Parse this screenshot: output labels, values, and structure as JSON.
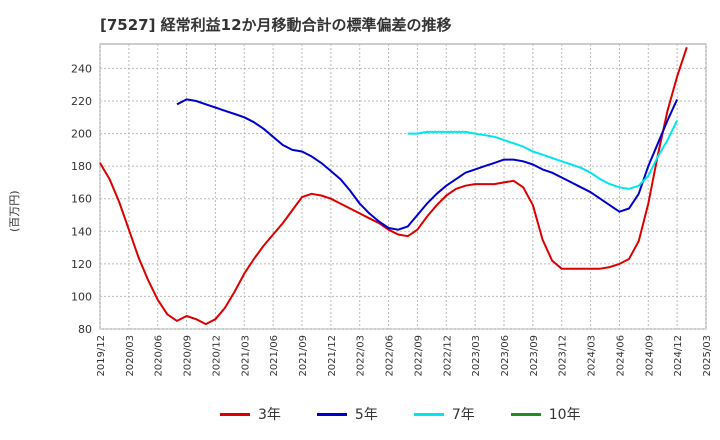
{
  "chart_data": {
    "type": "line",
    "title": "[7527]  経常利益12か月移動合計の標準偏差の推移",
    "ylabel": "(百万円)",
    "xlabel": "",
    "ylim": [
      80,
      255
    ],
    "yticks": [
      80,
      100,
      120,
      140,
      160,
      180,
      200,
      220,
      240
    ],
    "xticks": [
      "2019/12",
      "2020/03",
      "2020/06",
      "2020/09",
      "2020/12",
      "2021/03",
      "2021/06",
      "2021/09",
      "2021/12",
      "2022/03",
      "2022/06",
      "2022/09",
      "2022/12",
      "2023/03",
      "2023/06",
      "2023/09",
      "2023/12",
      "2024/03",
      "2024/06",
      "2024/09",
      "2024/12",
      "2025/03"
    ],
    "grid": true,
    "legend_position": "bottom",
    "series": [
      {
        "name": "3年",
        "color": "#dd0000",
        "values": [
          {
            "x": "2019/12",
            "y": 182
          },
          {
            "x": "2020/01",
            "y": 172
          },
          {
            "x": "2020/02",
            "y": 158
          },
          {
            "x": "2020/03",
            "y": 141
          },
          {
            "x": "2020/04",
            "y": 124
          },
          {
            "x": "2020/05",
            "y": 110
          },
          {
            "x": "2020/06",
            "y": 98
          },
          {
            "x": "2020/07",
            "y": 89
          },
          {
            "x": "2020/08",
            "y": 85
          },
          {
            "x": "2020/09",
            "y": 88
          },
          {
            "x": "2020/10",
            "y": 86
          },
          {
            "x": "2020/11",
            "y": 83
          },
          {
            "x": "2020/12",
            "y": 86
          },
          {
            "x": "2021/01",
            "y": 93
          },
          {
            "x": "2021/02",
            "y": 103
          },
          {
            "x": "2021/03",
            "y": 114
          },
          {
            "x": "2021/04",
            "y": 123
          },
          {
            "x": "2021/05",
            "y": 131
          },
          {
            "x": "2021/06",
            "y": 138
          },
          {
            "x": "2021/07",
            "y": 145
          },
          {
            "x": "2021/08",
            "y": 153
          },
          {
            "x": "2021/09",
            "y": 161
          },
          {
            "x": "2021/10",
            "y": 163
          },
          {
            "x": "2021/11",
            "y": 162
          },
          {
            "x": "2021/12",
            "y": 160
          },
          {
            "x": "2022/01",
            "y": 157
          },
          {
            "x": "2022/02",
            "y": 154
          },
          {
            "x": "2022/03",
            "y": 151
          },
          {
            "x": "2022/04",
            "y": 148
          },
          {
            "x": "2022/05",
            "y": 145
          },
          {
            "x": "2022/06",
            "y": 141
          },
          {
            "x": "2022/07",
            "y": 138
          },
          {
            "x": "2022/08",
            "y": 137
          },
          {
            "x": "2022/09",
            "y": 141
          },
          {
            "x": "2022/10",
            "y": 149
          },
          {
            "x": "2022/11",
            "y": 156
          },
          {
            "x": "2022/12",
            "y": 162
          },
          {
            "x": "2023/01",
            "y": 166
          },
          {
            "x": "2023/02",
            "y": 168
          },
          {
            "x": "2023/03",
            "y": 169
          },
          {
            "x": "2023/04",
            "y": 169
          },
          {
            "x": "2023/05",
            "y": 169
          },
          {
            "x": "2023/06",
            "y": 170
          },
          {
            "x": "2023/07",
            "y": 171
          },
          {
            "x": "2023/08",
            "y": 167
          },
          {
            "x": "2023/09",
            "y": 156
          },
          {
            "x": "2023/10",
            "y": 135
          },
          {
            "x": "2023/11",
            "y": 122
          },
          {
            "x": "2023/12",
            "y": 117
          },
          {
            "x": "2024/01",
            "y": 117
          },
          {
            "x": "2024/02",
            "y": 117
          },
          {
            "x": "2024/03",
            "y": 117
          },
          {
            "x": "2024/04",
            "y": 117
          },
          {
            "x": "2024/05",
            "y": 118
          },
          {
            "x": "2024/06",
            "y": 120
          },
          {
            "x": "2024/07",
            "y": 123
          },
          {
            "x": "2024/08",
            "y": 134
          },
          {
            "x": "2024/09",
            "y": 157
          },
          {
            "x": "2024/10",
            "y": 187
          },
          {
            "x": "2024/11",
            "y": 214
          },
          {
            "x": "2024/12",
            "y": 235
          },
          {
            "x": "2025/01",
            "y": 253
          }
        ]
      },
      {
        "name": "5年",
        "color": "#0000cc",
        "values": [
          {
            "x": "2020/08",
            "y": 218
          },
          {
            "x": "2020/09",
            "y": 221
          },
          {
            "x": "2020/10",
            "y": 220
          },
          {
            "x": "2020/11",
            "y": 218
          },
          {
            "x": "2020/12",
            "y": 216
          },
          {
            "x": "2021/01",
            "y": 214
          },
          {
            "x": "2021/02",
            "y": 212
          },
          {
            "x": "2021/03",
            "y": 210
          },
          {
            "x": "2021/04",
            "y": 207
          },
          {
            "x": "2021/05",
            "y": 203
          },
          {
            "x": "2021/06",
            "y": 198
          },
          {
            "x": "2021/07",
            "y": 193
          },
          {
            "x": "2021/08",
            "y": 190
          },
          {
            "x": "2021/09",
            "y": 189
          },
          {
            "x": "2021/10",
            "y": 186
          },
          {
            "x": "2021/11",
            "y": 182
          },
          {
            "x": "2021/12",
            "y": 177
          },
          {
            "x": "2022/01",
            "y": 172
          },
          {
            "x": "2022/02",
            "y": 165
          },
          {
            "x": "2022/03",
            "y": 157
          },
          {
            "x": "2022/04",
            "y": 151
          },
          {
            "x": "2022/05",
            "y": 146
          },
          {
            "x": "2022/06",
            "y": 142
          },
          {
            "x": "2022/07",
            "y": 141
          },
          {
            "x": "2022/08",
            "y": 143
          },
          {
            "x": "2022/09",
            "y": 150
          },
          {
            "x": "2022/10",
            "y": 157
          },
          {
            "x": "2022/11",
            "y": 163
          },
          {
            "x": "2022/12",
            "y": 168
          },
          {
            "x": "2023/01",
            "y": 172
          },
          {
            "x": "2023/02",
            "y": 176
          },
          {
            "x": "2023/03",
            "y": 178
          },
          {
            "x": "2023/04",
            "y": 180
          },
          {
            "x": "2023/05",
            "y": 182
          },
          {
            "x": "2023/06",
            "y": 184
          },
          {
            "x": "2023/07",
            "y": 184
          },
          {
            "x": "2023/08",
            "y": 183
          },
          {
            "x": "2023/09",
            "y": 181
          },
          {
            "x": "2023/10",
            "y": 178
          },
          {
            "x": "2023/11",
            "y": 176
          },
          {
            "x": "2023/12",
            "y": 173
          },
          {
            "x": "2024/01",
            "y": 170
          },
          {
            "x": "2024/02",
            "y": 167
          },
          {
            "x": "2024/03",
            "y": 164
          },
          {
            "x": "2024/04",
            "y": 160
          },
          {
            "x": "2024/05",
            "y": 156
          },
          {
            "x": "2024/06",
            "y": 152
          },
          {
            "x": "2024/07",
            "y": 154
          },
          {
            "x": "2024/08",
            "y": 163
          },
          {
            "x": "2024/09",
            "y": 180
          },
          {
            "x": "2024/10",
            "y": 194
          },
          {
            "x": "2024/11",
            "y": 208
          },
          {
            "x": "2024/12",
            "y": 221
          }
        ]
      },
      {
        "name": "7年",
        "color": "#00e5ee",
        "values": [
          {
            "x": "2022/08",
            "y": 200
          },
          {
            "x": "2022/09",
            "y": 200
          },
          {
            "x": "2022/10",
            "y": 201
          },
          {
            "x": "2022/11",
            "y": 201
          },
          {
            "x": "2022/12",
            "y": 201
          },
          {
            "x": "2023/01",
            "y": 201
          },
          {
            "x": "2023/02",
            "y": 201
          },
          {
            "x": "2023/03",
            "y": 200
          },
          {
            "x": "2023/04",
            "y": 199
          },
          {
            "x": "2023/05",
            "y": 198
          },
          {
            "x": "2023/06",
            "y": 196
          },
          {
            "x": "2023/07",
            "y": 194
          },
          {
            "x": "2023/08",
            "y": 192
          },
          {
            "x": "2023/09",
            "y": 189
          },
          {
            "x": "2023/10",
            "y": 187
          },
          {
            "x": "2023/11",
            "y": 185
          },
          {
            "x": "2023/12",
            "y": 183
          },
          {
            "x": "2024/01",
            "y": 181
          },
          {
            "x": "2024/02",
            "y": 179
          },
          {
            "x": "2024/03",
            "y": 176
          },
          {
            "x": "2024/04",
            "y": 172
          },
          {
            "x": "2024/05",
            "y": 169
          },
          {
            "x": "2024/06",
            "y": 167
          },
          {
            "x": "2024/07",
            "y": 166
          },
          {
            "x": "2024/08",
            "y": 168
          },
          {
            "x": "2024/09",
            "y": 174
          },
          {
            "x": "2024/10",
            "y": 186
          },
          {
            "x": "2024/11",
            "y": 196
          },
          {
            "x": "2024/12",
            "y": 208
          }
        ]
      },
      {
        "name": "10年",
        "color": "#228b22",
        "values": []
      }
    ]
  }
}
